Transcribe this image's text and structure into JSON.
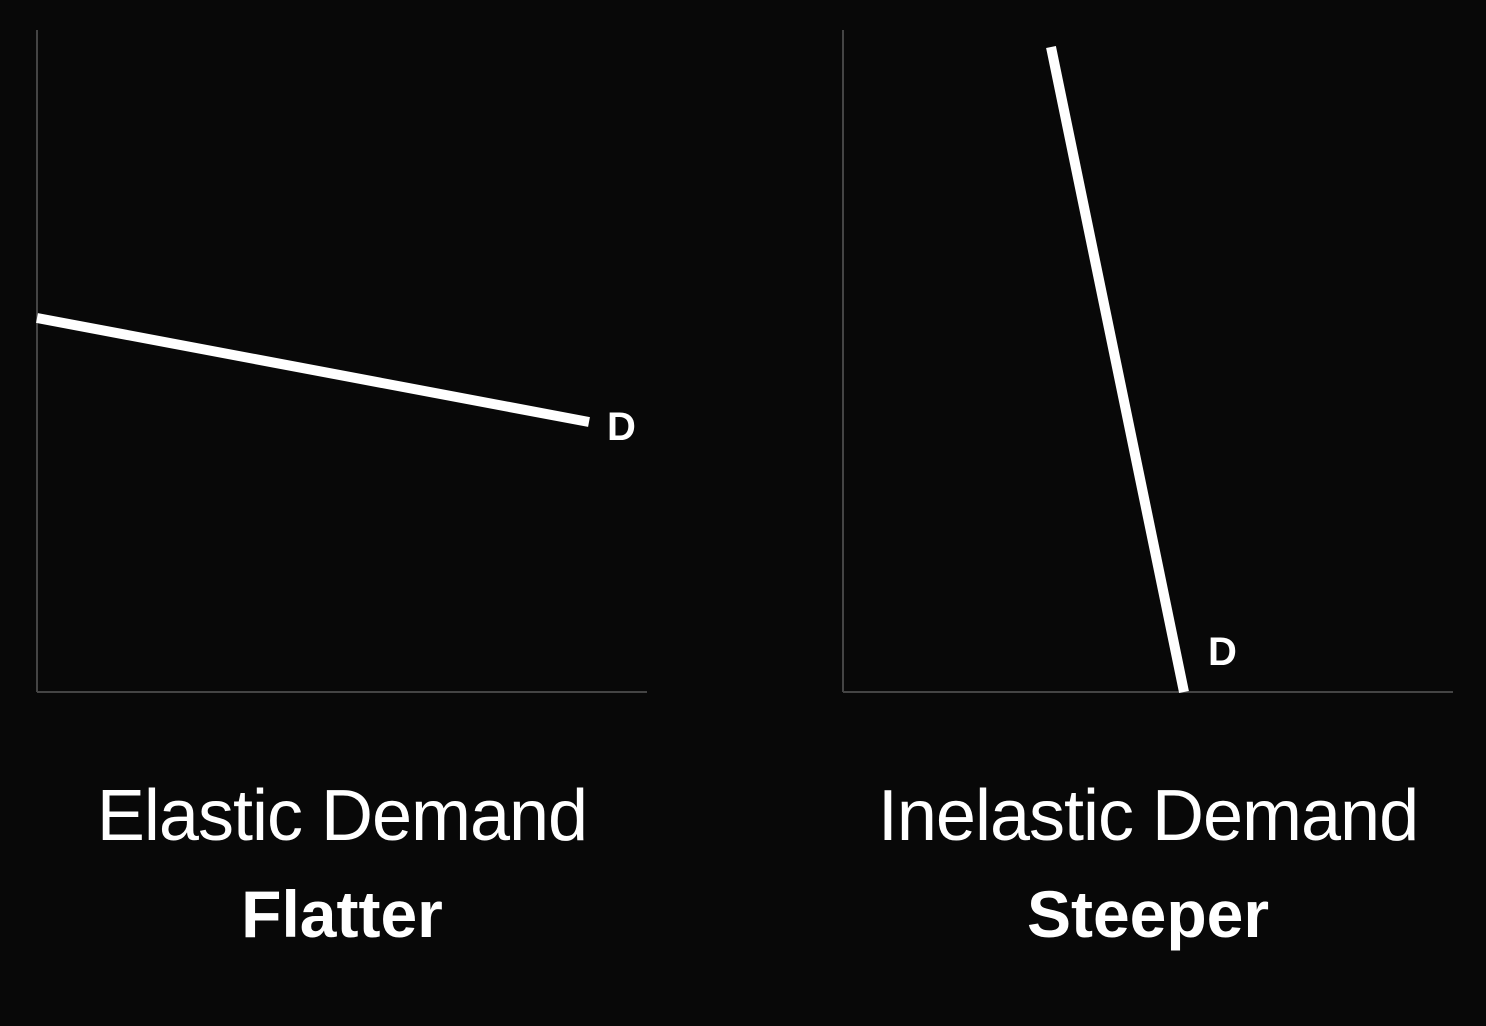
{
  "panels": [
    {
      "title": "Elastic Demand",
      "subtitle": "Flatter",
      "curve_label": "D"
    },
    {
      "title": "Inelastic Demand",
      "subtitle": "Steeper",
      "curve_label": "D"
    }
  ],
  "colors": {
    "background": "#080808",
    "axis": "#444444",
    "curve": "#ffffff",
    "text": "#ffffff"
  }
}
